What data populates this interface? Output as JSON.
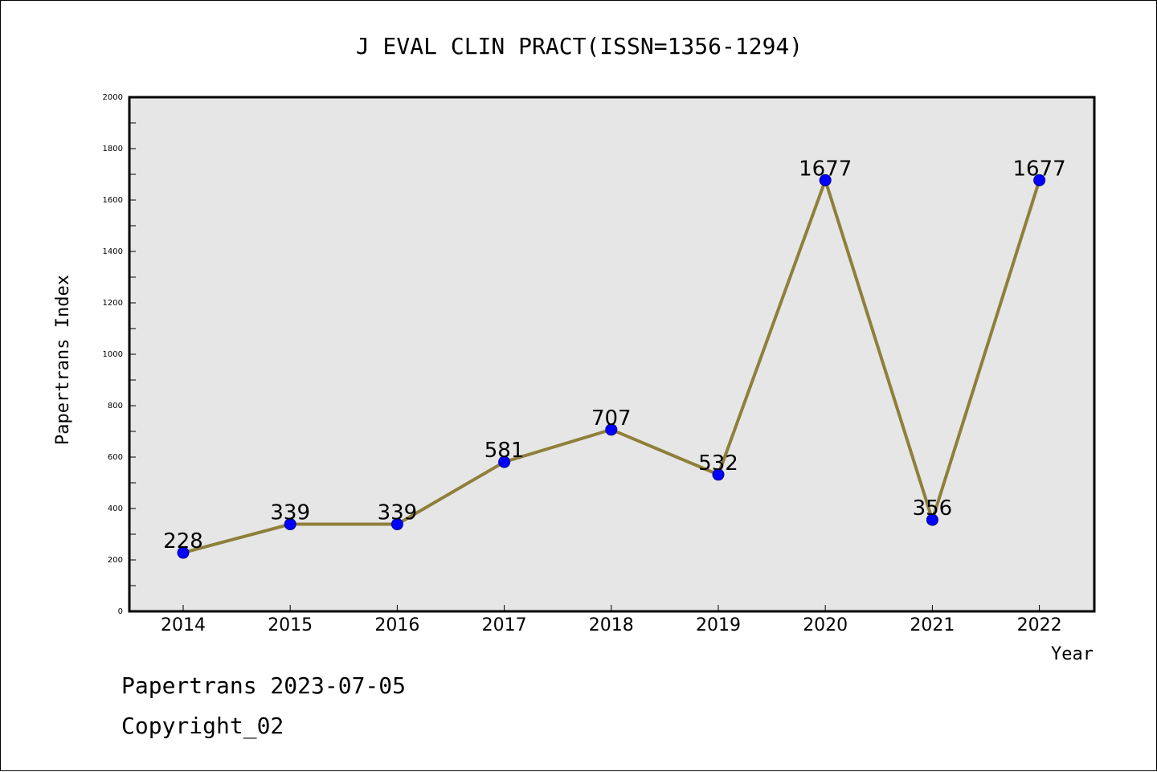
{
  "chart_data": {
    "type": "line",
    "title": "J EVAL CLIN PRACT(ISSN=1356-1294)",
    "xlabel": "Year",
    "ylabel": "Papertrans Index",
    "categories": [
      "2014",
      "2015",
      "2016",
      "2017",
      "2018",
      "2019",
      "2020",
      "2021",
      "2022"
    ],
    "values": [
      228,
      339,
      339,
      581,
      707,
      532,
      1677,
      356,
      1677
    ],
    "ylim": [
      0,
      2000
    ],
    "yticks": [
      0,
      200,
      400,
      600,
      800,
      1000,
      1200,
      1400,
      1600,
      1800,
      2000
    ],
    "grid": false,
    "colors": {
      "plot_background": "#e6e6e6",
      "line": "#8f7f3a",
      "marker": "#0000ff",
      "marker_edge": "#00008b"
    }
  },
  "footer": {
    "date_text": "Papertrans 2023-07-05",
    "copyright_text": "Copyright_02"
  }
}
